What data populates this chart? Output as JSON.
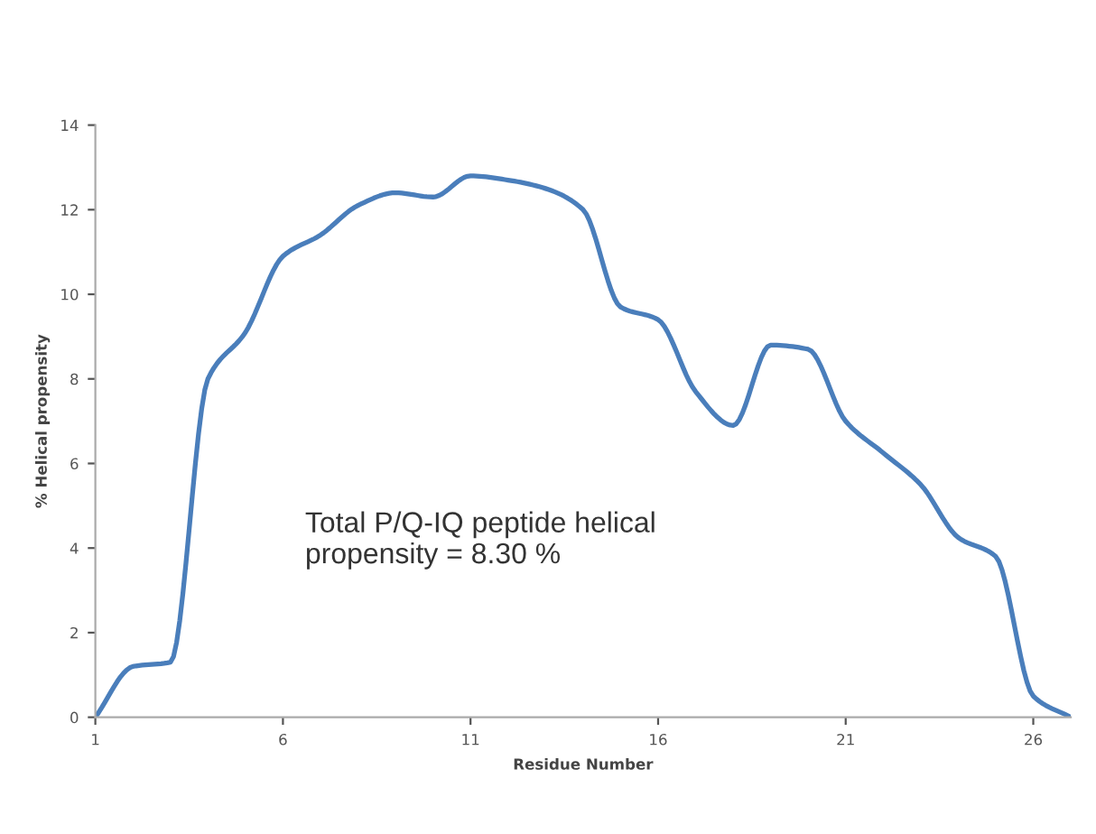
{
  "chart_data": {
    "type": "line",
    "xlabel": "Residue Number",
    "ylabel": "% Helical propensity",
    "x": [
      1,
      2,
      3,
      4,
      5,
      6,
      7,
      8,
      9,
      10,
      11,
      12,
      13,
      14,
      15,
      16,
      17,
      18,
      19,
      20,
      21,
      22,
      23,
      24,
      25,
      26,
      27
    ],
    "series": [
      {
        "color": "#4a7ebb",
        "values": [
          0,
          1.2,
          1.3,
          8.0,
          9.1,
          10.9,
          11.4,
          12.1,
          12.4,
          12.3,
          12.8,
          12.7,
          12.5,
          12.0,
          9.7,
          9.4,
          7.7,
          6.9,
          8.8,
          8.7,
          7.0,
          6.25,
          5.5,
          4.25,
          3.8,
          0.5,
          0
        ]
      }
    ],
    "xlim": [
      1,
      27
    ],
    "xticks": [
      1,
      6,
      11,
      16,
      21,
      26
    ],
    "ylim": [
      0,
      14
    ],
    "yticks": [
      0,
      2,
      4,
      6,
      8,
      10,
      12,
      14
    ],
    "grid": false,
    "legend": false,
    "marker": "none",
    "line_style": "solid",
    "annotations": [
      {
        "text": "Total P/Q-IQ peptide helical\npropensity = 8.30 %"
      }
    ]
  }
}
